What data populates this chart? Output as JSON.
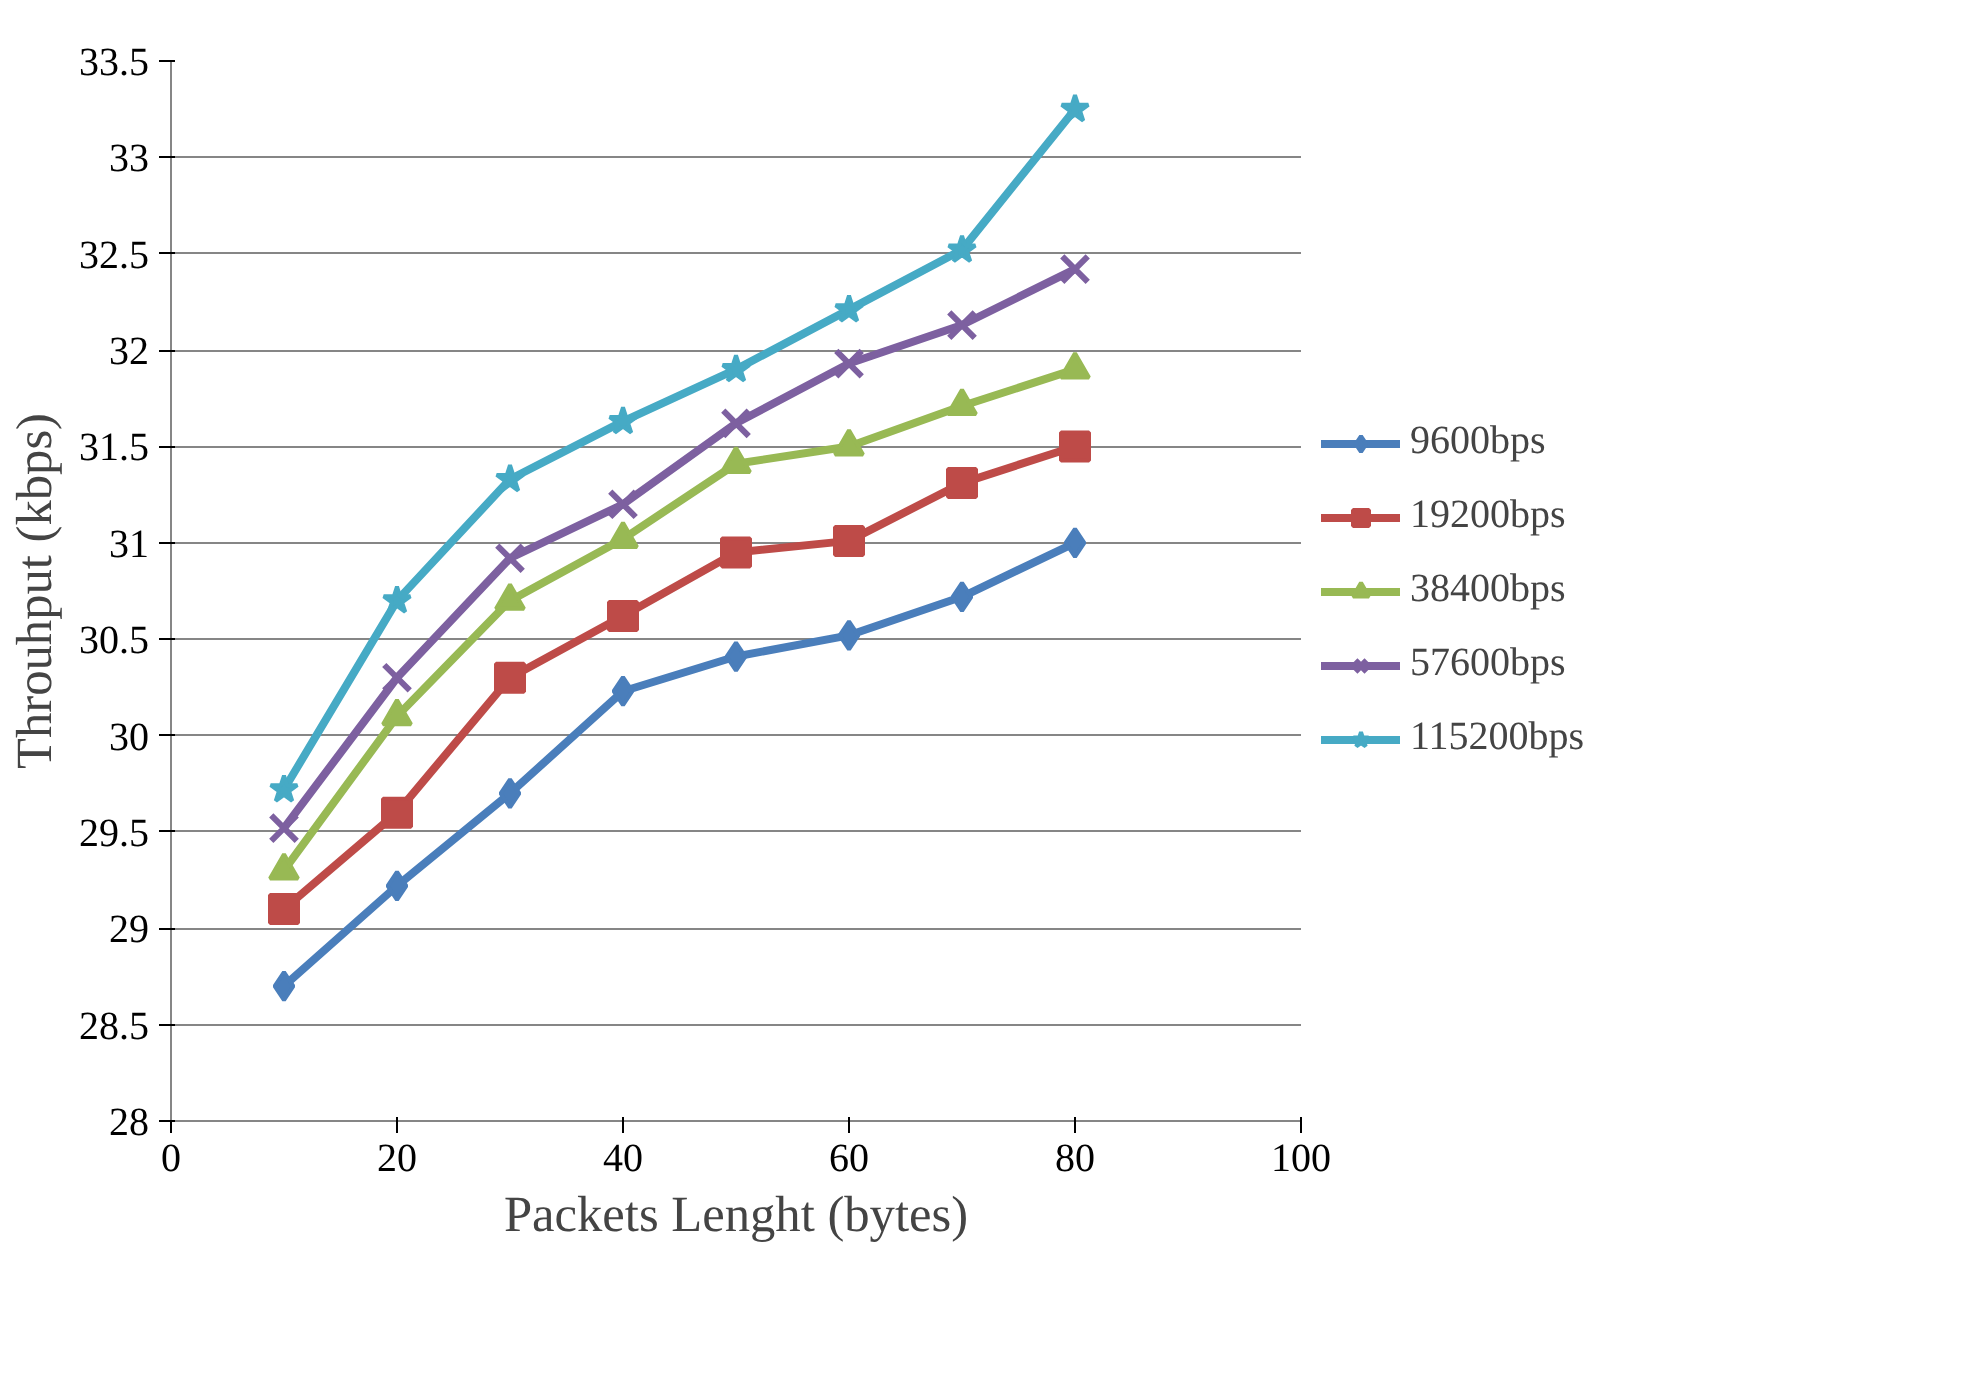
{
  "chart_data": {
    "type": "line",
    "xlabel": "Packets Lenght (bytes)",
    "ylabel": "Throuhput (kbps)",
    "x": [
      10,
      20,
      30,
      40,
      50,
      60,
      70,
      80
    ],
    "series": [
      {
        "name": "9600bps",
        "color": "#4a7ebb",
        "marker": "diamond",
        "values": [
          28.7,
          29.22,
          29.7,
          30.23,
          30.41,
          30.52,
          30.72,
          31.0
        ]
      },
      {
        "name": "19200bps",
        "color": "#be4b48",
        "marker": "square",
        "values": [
          29.1,
          29.6,
          30.3,
          30.62,
          30.95,
          31.01,
          31.31,
          31.5
        ]
      },
      {
        "name": "38400bps",
        "color": "#98b954",
        "marker": "triangle",
        "values": [
          29.3,
          30.1,
          30.7,
          31.02,
          31.41,
          31.5,
          31.71,
          31.9
        ]
      },
      {
        "name": "57600bps",
        "color": "#7d60a0",
        "marker": "cross",
        "values": [
          29.52,
          30.3,
          30.92,
          31.2,
          31.62,
          31.93,
          32.13,
          32.42
        ]
      },
      {
        "name": "115200bps",
        "color": "#46aac5",
        "marker": "star",
        "values": [
          29.72,
          30.7,
          31.33,
          31.63,
          31.9,
          32.21,
          32.52,
          33.25
        ]
      }
    ],
    "xlim": [
      0,
      100
    ],
    "xticks": [
      0,
      20,
      40,
      60,
      80,
      100
    ],
    "ylim": [
      28,
      33.5
    ],
    "yticks": [
      28,
      28.5,
      29,
      29.5,
      30,
      30.5,
      31,
      31.5,
      32,
      32.5,
      33,
      33.5
    ],
    "grid": "y",
    "legend": "right",
    "line_style": "solid"
  }
}
